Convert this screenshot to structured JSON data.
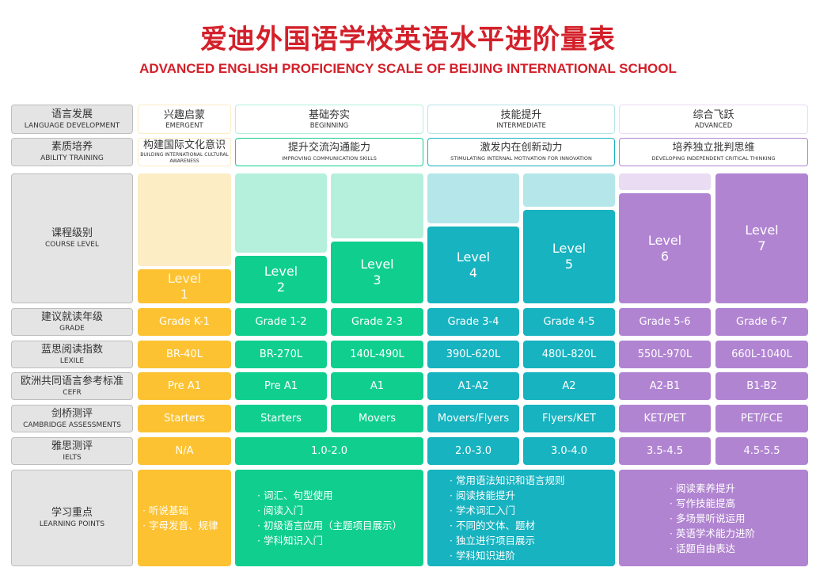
{
  "title": "爱迪外国语学校英语水平进阶量表",
  "subtitle": "ADVANCED ENGLISH PROFICIENCY SCALE OF BEIJING INTERNATIONAL SCHOOL",
  "row_labels": [
    {
      "zh": "语言发展",
      "en": "LANGUAGE DEVELOPMENT"
    },
    {
      "zh": "素质培养",
      "en": "ABILITY TRAINING"
    },
    {
      "zh": "课程级别",
      "en": "COURSE LEVEL"
    },
    {
      "zh": "建议就读年级",
      "en": "GRADE"
    },
    {
      "zh": "蓝思阅读指数",
      "en": "LEXILE"
    },
    {
      "zh": "欧洲共同语言参考标准",
      "en": "CEFR"
    },
    {
      "zh": "剑桥测评",
      "en": "CAMBRIDGE  ASSESSMENTS"
    },
    {
      "zh": "雅思测评",
      "en": "IELTS"
    },
    {
      "zh": "学习重点",
      "en": "LEARNING POINTS"
    }
  ],
  "stages": [
    {
      "zh": "兴趣启蒙",
      "en": "EMERGENT"
    },
    {
      "zh": "基础夯实",
      "en": "BEGINNING"
    },
    {
      "zh": "技能提升",
      "en": "INTERMEDIATE"
    },
    {
      "zh": "综合飞跃",
      "en": "ADVANCED"
    }
  ],
  "abilities": [
    {
      "zh": "构建国际文化意识",
      "en": "BUILDING INTERNATIONAL CULTURAL AWARENESS"
    },
    {
      "zh": "提升交流沟通能力",
      "en": "IMPROVING COMMUNICATION SKILLS"
    },
    {
      "zh": "激发内在创新动力",
      "en": "STIMULATING INTERNAL MOTIVATION FOR INNOVATION"
    },
    {
      "zh": "培养独立批判思维",
      "en": "DEVELOPING INDEPENDENT CRITICAL THINKING"
    }
  ],
  "levels": [
    {
      "word": "Level",
      "num": "1"
    },
    {
      "word": "Level",
      "num": "2"
    },
    {
      "word": "Level",
      "num": "3"
    },
    {
      "word": "Level",
      "num": "4"
    },
    {
      "word": "Level",
      "num": "5"
    },
    {
      "word": "Level",
      "num": "6"
    },
    {
      "word": "Level",
      "num": "7"
    }
  ],
  "grades": [
    "Grade K-1",
    "Grade 1-2",
    "Grade 2-3",
    "Grade 3-4",
    "Grade 4-5",
    "Grade 5-6",
    "Grade 6-7"
  ],
  "lexile": [
    "BR-40L",
    "BR-270L",
    "140L-490L",
    "390L-620L",
    "480L-820L",
    "550L-970L",
    "660L-1040L"
  ],
  "cefr": [
    "Pre A1",
    "Pre A1",
    "A1",
    "A1-A2",
    "A2",
    "A2-B1",
    "B1-B2"
  ],
  "cambridge": [
    "Starters",
    "Starters",
    "Movers",
    "Movers/Flyers",
    "Flyers/KET",
    "KET/PET",
    "PET/FCE"
  ],
  "ielts": [
    "N/A",
    "1.0-2.0",
    "2.0-3.0",
    "3.0-4.0",
    "3.5-4.5",
    "4.5-5.5"
  ],
  "learning_points": [
    [
      "听说基础",
      "字母发音、规律"
    ],
    [
      "词汇、句型使用",
      "阅读入门",
      "初级语言应用（主题项目展示）",
      "学科知识入门"
    ],
    [
      "常用语法知识和语言规则",
      "阅读技能提升",
      "学术词汇入门",
      "不同的文体、题材",
      "独立进行项目展示",
      "学科知识进阶"
    ],
    [
      "阅读素养提升",
      "写作技能提高",
      "多场景听说运用",
      "英语学术能力进阶",
      "话题自由表达"
    ]
  ],
  "colors": {
    "yellow": "#fcc232",
    "yellow_light": "#fdedc5",
    "green": "#10cf8e",
    "green_light": "#b5f0dc",
    "teal": "#17b3c0",
    "teal_light": "#b5e6ea",
    "purple": "#b184d2",
    "purple_light": "#eadcf3",
    "title_red": "#d3202a"
  }
}
